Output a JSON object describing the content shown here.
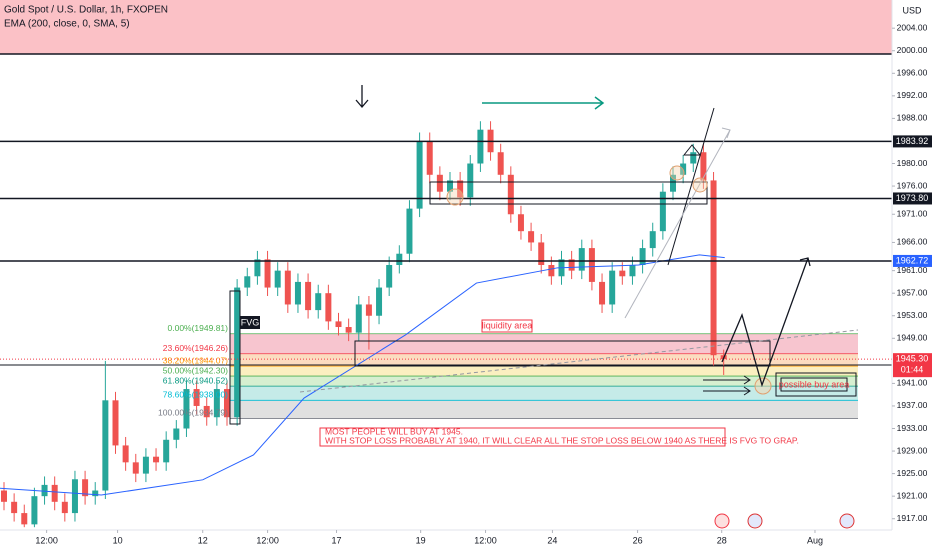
{
  "chart_data": {
    "type": "candlestick",
    "title": "Gold Spot / U.S. Dollar, 1h, FXOPEN",
    "indicator": "EMA (200, close, 0, SMA, 5)",
    "currency": "USD",
    "up_color": "#26a69a",
    "down_color": "#ef5350",
    "xlim": [
      0,
      88
    ],
    "ylim": [
      1915,
      2009
    ],
    "xticks": [
      {
        "value": 4.6,
        "label": "12:00"
      },
      {
        "value": 11.6,
        "label": "10"
      },
      {
        "value": 20,
        "label": "12"
      },
      {
        "value": 26.4,
        "label": "12:00"
      },
      {
        "value": 33.2,
        "label": "17"
      },
      {
        "value": 41.5,
        "label": "19"
      },
      {
        "value": 47.9,
        "label": "12:00"
      },
      {
        "value": 54.5,
        "label": "24"
      },
      {
        "value": 62.9,
        "label": "26"
      },
      {
        "value": 71.2,
        "label": "28"
      },
      {
        "value": 80.4,
        "label": "Aug"
      }
    ],
    "yticks": [
      {
        "value": 2004,
        "label": "2004.00"
      },
      {
        "value": 2000,
        "label": "2000.00"
      },
      {
        "value": 1996,
        "label": "1996.00"
      },
      {
        "value": 1992,
        "label": "1992.00"
      },
      {
        "value": 1988,
        "label": "1988.00"
      },
      {
        "value": 1980,
        "label": "1980.00"
      },
      {
        "value": 1976,
        "label": "1976.00"
      },
      {
        "value": 1971,
        "label": "1971.00"
      },
      {
        "value": 1966,
        "label": "1966.00"
      },
      {
        "value": 1961,
        "label": "1961.00"
      },
      {
        "value": 1957,
        "label": "1957.00"
      },
      {
        "value": 1953,
        "label": "1953.00"
      },
      {
        "value": 1949,
        "label": "1949.00"
      },
      {
        "value": 1941,
        "label": "1941.00"
      },
      {
        "value": 1937,
        "label": "1937.00"
      },
      {
        "value": 1933,
        "label": "1933.00"
      },
      {
        "value": 1929,
        "label": "1929.00"
      },
      {
        "value": 1925,
        "label": "1925.00"
      },
      {
        "value": 1921,
        "label": "1921.00"
      },
      {
        "value": 1917,
        "label": "1917.00"
      }
    ],
    "open": [
      1922,
      1920,
      1918,
      1916,
      1921,
      1923,
      1920,
      1918,
      1924,
      1921,
      1922,
      1938,
      1930,
      1927,
      1925,
      1928,
      1927,
      1931,
      1933,
      1940,
      1937,
      1935,
      1940,
      1935,
      1958,
      1960,
      1963,
      1958,
      1961,
      1955,
      1959,
      1954,
      1957,
      1952,
      1951,
      1950,
      1955,
      1953,
      1958,
      1962,
      1964,
      1972,
      1984,
      1978,
      1975,
      1977,
      1974,
      1980,
      1986,
      1982,
      1978,
      1971,
      1968,
      1966,
      1962,
      1960,
      1963,
      1961,
      1965,
      1959,
      1955,
      1961,
      1960,
      1962,
      1965,
      1968,
      1975,
      1978,
      1980,
      1982,
      1977,
      1946
    ],
    "high": [
      1923.5,
      1921.5,
      1919.5,
      1922.5,
      1924.5,
      1924.5,
      1921.5,
      1925.5,
      1925.5,
      1923.5,
      1945,
      1939.5,
      1931.5,
      1928.5,
      1929.5,
      1929.5,
      1932.5,
      1934.5,
      1941.5,
      1941.5,
      1938.5,
      1941.5,
      1941.5,
      1959.5,
      1961.5,
      1964.5,
      1964.5,
      1962.5,
      1962.5,
      1960.5,
      1960.5,
      1958.5,
      1958.5,
      1953.5,
      1952.5,
      1956.5,
      1956.5,
      1959.5,
      1963.5,
      1965.5,
      1973.5,
      1985.5,
      1985.5,
      1979.5,
      1978.5,
      1978.5,
      1981.5,
      1987.5,
      1987.5,
      1983.5,
      1979.5,
      1972.5,
      1969.5,
      1967.5,
      1963.5,
      1964.5,
      1964.5,
      1966.5,
      1966.5,
      1960.5,
      1962.5,
      1962.5,
      1963.5,
      1966.5,
      1969.5,
      1976.5,
      1979.5,
      1981.5,
      1983.5,
      1983.5,
      1978.5,
      1947
    ],
    "low": [
      1918.5,
      1916.5,
      1915.5,
      1915.5,
      1919.5,
      1918.5,
      1916.5,
      1916.5,
      1919.5,
      1919.5,
      1920.5,
      1928.5,
      1925.5,
      1923.5,
      1923.5,
      1925.5,
      1925.5,
      1929.5,
      1931.5,
      1935.5,
      1933.5,
      1933.5,
      1933.5,
      1933.5,
      1956.5,
      1958.5,
      1956.5,
      1956.5,
      1953.5,
      1953.5,
      1952.5,
      1952.5,
      1950.5,
      1949.5,
      1948.5,
      1948.5,
      1947,
      1951.5,
      1956.5,
      1960.5,
      1962.5,
      1970.5,
      1976.5,
      1973.5,
      1973.5,
      1972.5,
      1972.5,
      1978.5,
      1980.5,
      1976.5,
      1969.5,
      1966.5,
      1964.5,
      1960.5,
      1958.5,
      1958.5,
      1959.5,
      1959.5,
      1957.5,
      1953.5,
      1953.5,
      1958.5,
      1958.5,
      1960.5,
      1963.5,
      1966.5,
      1973.5,
      1976.5,
      1978.5,
      1975.5,
      1944,
      1942.5
    ],
    "close": [
      1920,
      1918,
      1916,
      1921,
      1923,
      1920,
      1918,
      1924,
      1921,
      1922,
      1938,
      1930,
      1927,
      1925,
      1928,
      1927,
      1931,
      1933,
      1940,
      1937,
      1935,
      1940,
      1935,
      1958,
      1960,
      1963,
      1958,
      1961,
      1955,
      1959,
      1954,
      1957,
      1952,
      1951,
      1950,
      1955,
      1953,
      1958,
      1962,
      1964,
      1972,
      1984,
      1978,
      1975,
      1977,
      1974,
      1980,
      1986,
      1982,
      1978,
      1971,
      1968,
      1966,
      1962,
      1960,
      1963,
      1961,
      1965,
      1959,
      1955,
      1961,
      1960,
      1962,
      1965,
      1968,
      1975,
      1978,
      1980,
      1982,
      1977,
      1946,
      1945.3
    ],
    "ema": {
      "color": "#2962ff",
      "x": [
        0,
        10,
        20,
        25,
        30,
        40,
        47,
        55,
        63,
        69,
        71.5
      ],
      "values": [
        1922.4,
        1921.2,
        1923.9,
        1928.3,
        1938.4,
        1949.6,
        1958.8,
        1961.5,
        1962,
        1963.8,
        1963.3
      ]
    },
    "price_lines": {
      "values": [
        1983.92,
        1973.8,
        1962.72
      ],
      "value_labels": [
        "1983.92",
        "1973.80",
        "1962.72"
      ],
      "colors": [
        "#131722",
        "#131722",
        "#2962ff"
      ]
    },
    "last_price": {
      "value": 1945.3,
      "value_label": "1945.30",
      "countdown": "01:44",
      "color": "#f23645"
    },
    "fib": {
      "levels": [
        {
          "value": 1949.81,
          "label": "0.00%(1949.81)"
        },
        {
          "value": 1946.26,
          "label": "23.60%(1946.26)"
        },
        {
          "value": 1944.07,
          "label": "38.20%(1944.07)"
        },
        {
          "value": 1942.3,
          "label": "50.00%(1942.30)"
        },
        {
          "value": 1940.52,
          "label": "61.80%(1940.52)"
        },
        {
          "value": 1938.0,
          "label": "78.60%(1938.00)"
        },
        {
          "value": 1934.79,
          "label": "100.00%(1934.79)"
        }
      ],
      "colors": [
        "#f7c5cf",
        "#fbdcc0",
        "#fbefc0",
        "#d6efd0",
        "#c5ebe8",
        "#e0e0e0"
      ],
      "text_colors": [
        "#4caf50",
        "#f23645",
        "#ff9800",
        "#4caf50",
        "#089981",
        "#00bcd4",
        "#787b86"
      ]
    },
    "annotations": {
      "fvg": "FVG",
      "liquidity": "liquidity area",
      "buy_area": "possible buy area",
      "note": [
        "MOST PEOPLE WILL BUY AT 1945.",
        "WITH STOP LOSS PROBABLY AT 1940, IT WILL CLEAR ALL THE STOP LOSS BELOW 1940 AS THERE IS FVG TO GRAP."
      ]
    }
  }
}
